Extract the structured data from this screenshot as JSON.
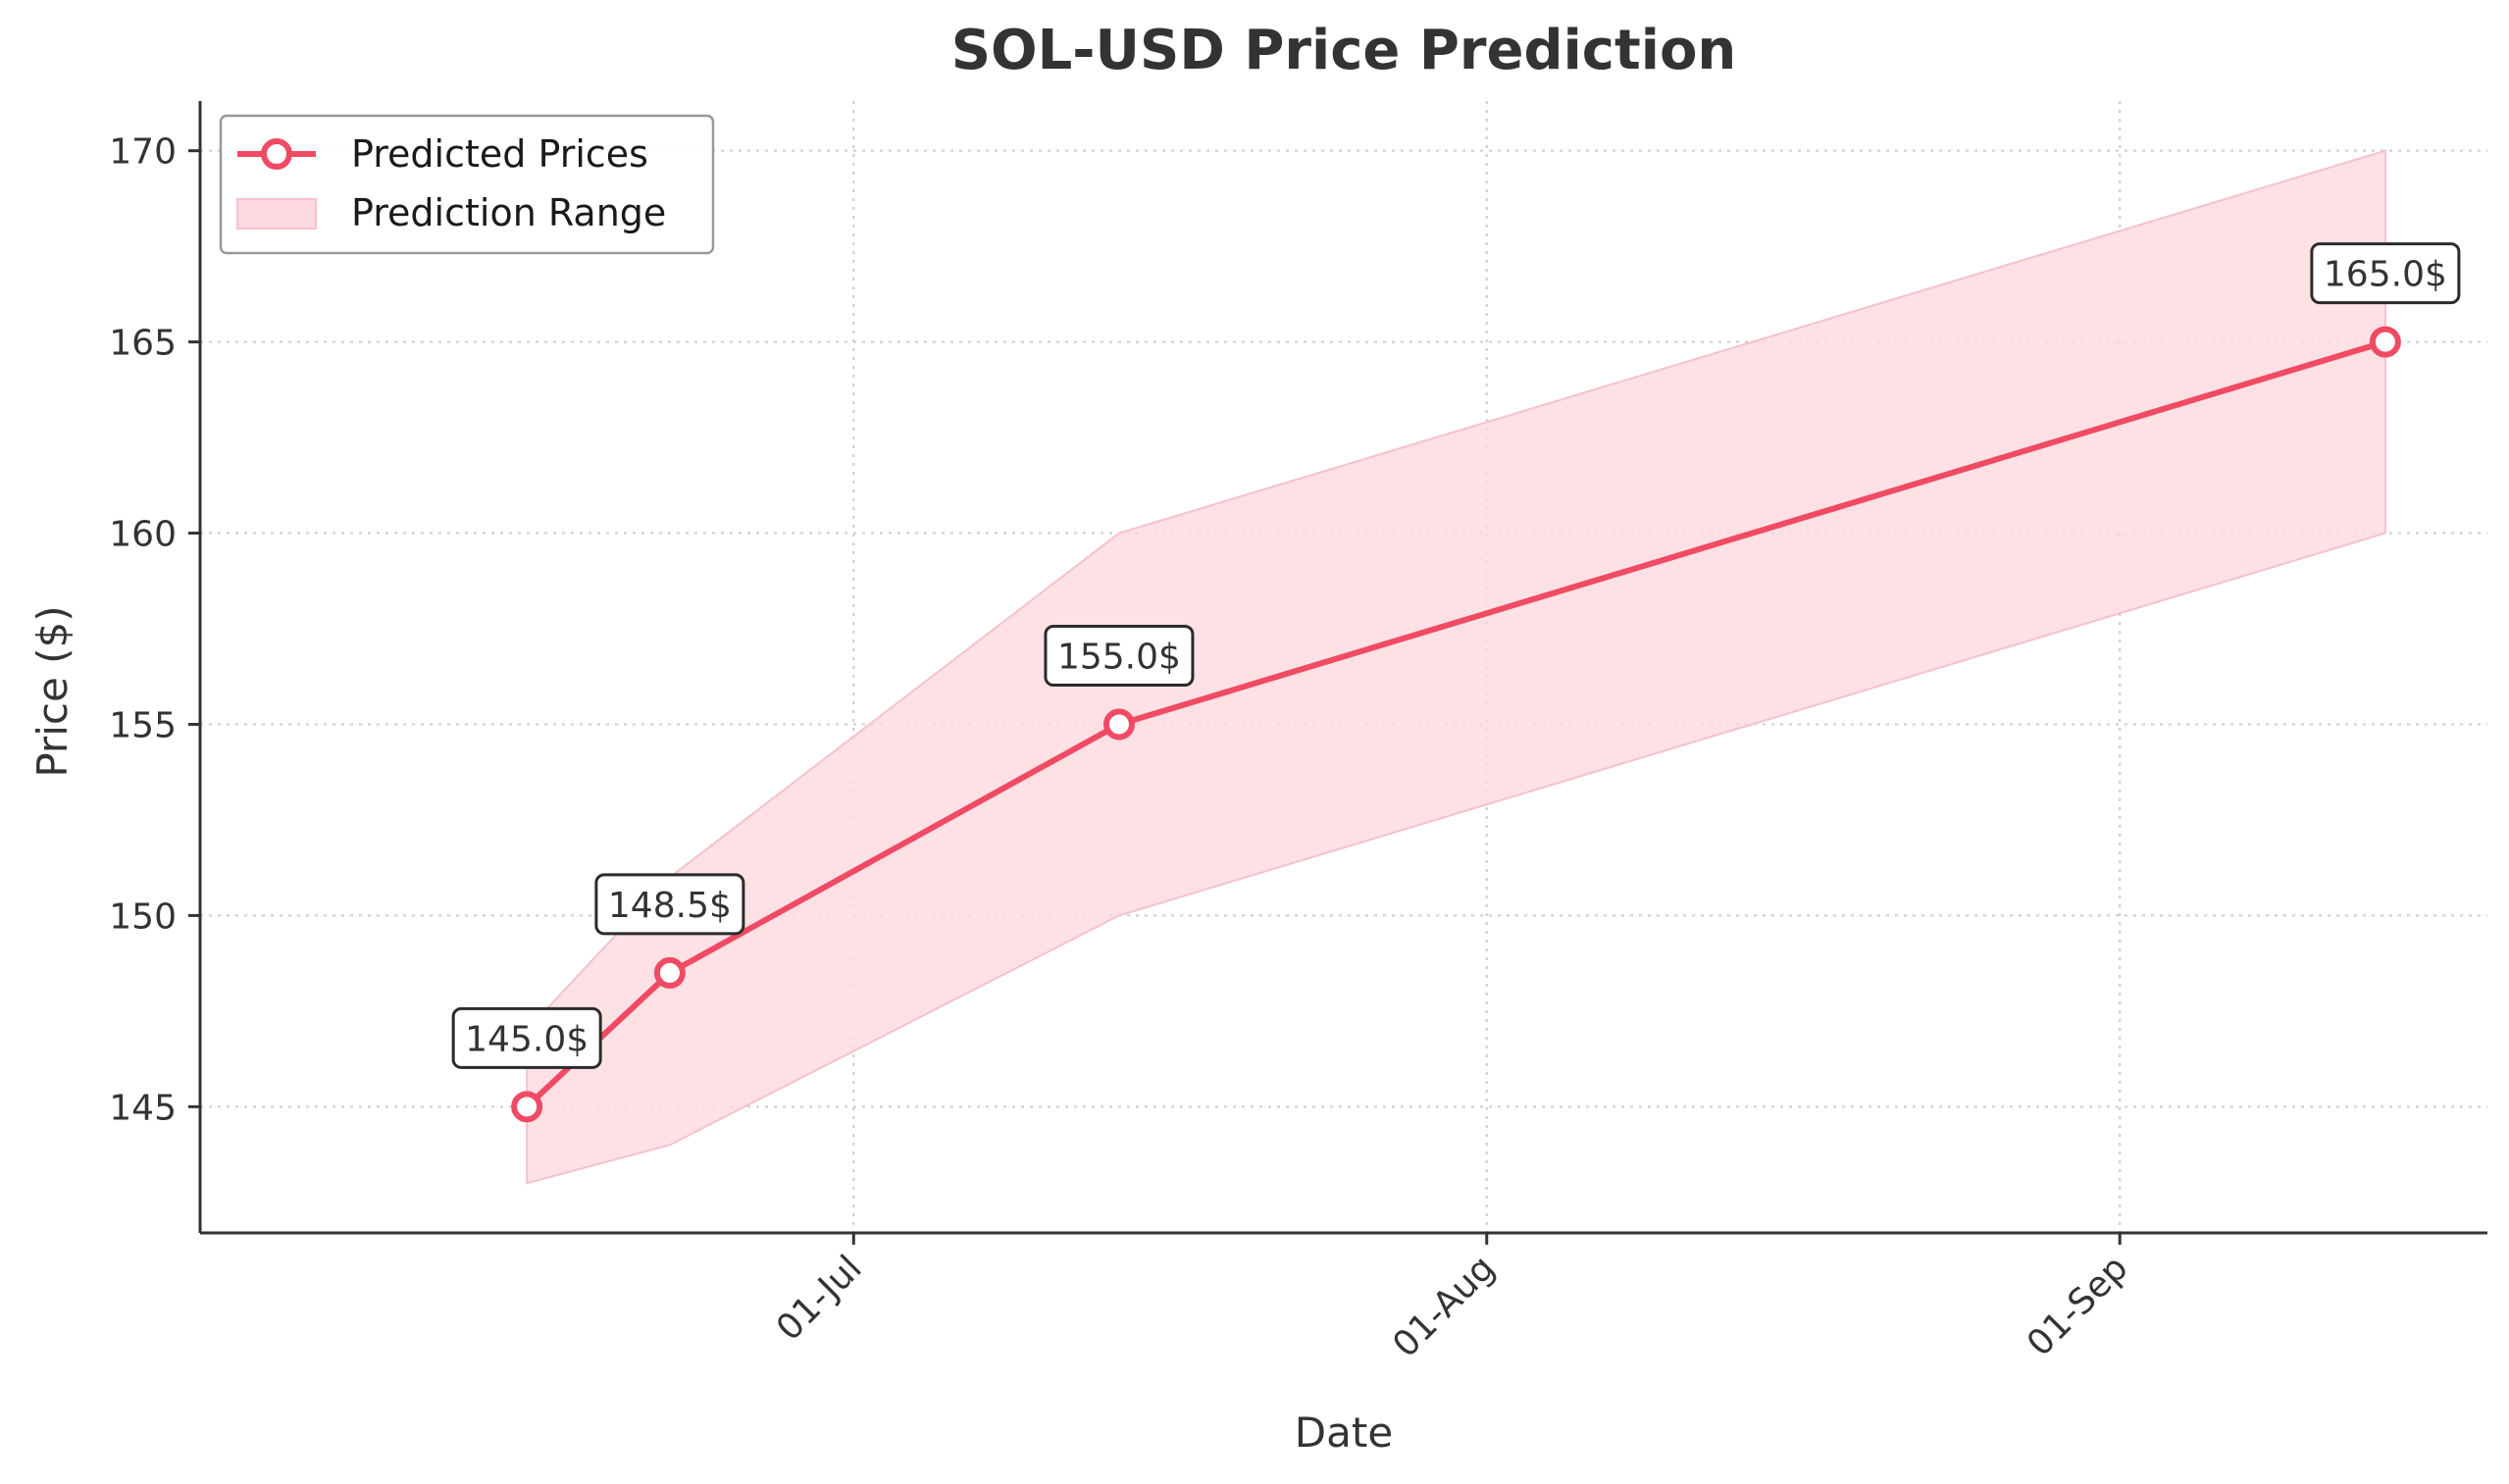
{
  "chart_data": {
    "type": "line",
    "title": "SOL-USD Price Prediction",
    "xlabel": "Date",
    "ylabel": "Price ($)",
    "x_day_range": [
      -32,
      80
    ],
    "ylim": [
      141.7,
      171.3
    ],
    "y_ticks": [
      145,
      150,
      155,
      160,
      165,
      170
    ],
    "x_ticks": [
      {
        "day": 0,
        "label": "01-Jul"
      },
      {
        "day": 31,
        "label": "01-Aug"
      },
      {
        "day": 62,
        "label": "01-Sep"
      }
    ],
    "grid": true,
    "legend_position": "top-left",
    "legend": {
      "line_label": "Predicted Prices",
      "range_label": "Prediction Range"
    },
    "series": [
      {
        "name": "Predicted Prices",
        "color": "#f04a64",
        "points": [
          {
            "day": -16,
            "value": 145.0,
            "label": "145.0$"
          },
          {
            "day": -9,
            "value": 148.5,
            "label": "148.5$"
          },
          {
            "day": 13,
            "value": 155.0,
            "label": "155.0$"
          },
          {
            "day": 75,
            "value": 165.0,
            "label": "165.0$"
          }
        ]
      }
    ],
    "range": {
      "name": "Prediction Range",
      "color": "#ffdde3",
      "days": [
        -16,
        -9,
        13,
        75
      ],
      "lower": [
        143,
        144,
        150,
        160
      ],
      "upper": [
        147,
        151,
        160,
        170
      ]
    }
  },
  "colors": {
    "axis": "#333333",
    "grid": "#cccccc",
    "line": "#f04a64",
    "band": "#fcd9df"
  }
}
